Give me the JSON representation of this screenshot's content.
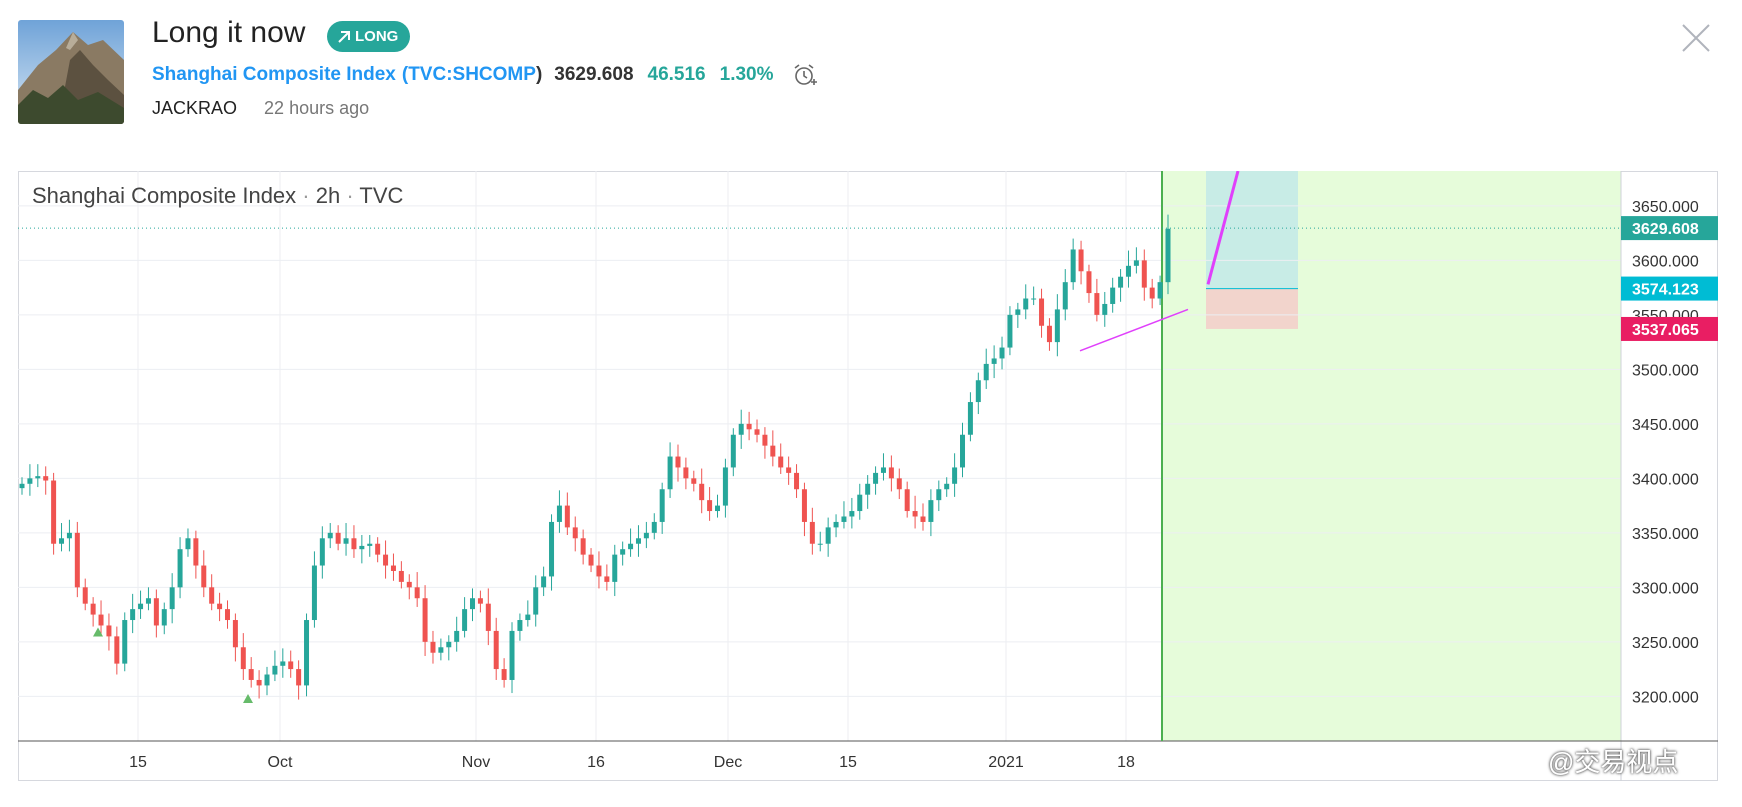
{
  "header": {
    "title": "Long it now",
    "badge_label": "LONG",
    "symbol_name": "Shanghai Composite Index",
    "symbol_open": "(",
    "symbol_code": "TVC:SHCOMP",
    "symbol_close": ")",
    "price": "3629.608",
    "change": "46.516",
    "change_pct": "1.30%",
    "author": "JACKRAO",
    "time_ago": "22 hours ago"
  },
  "colors": {
    "up": "#26a69a",
    "down": "#ef5350",
    "accent": "#2196f3",
    "target_zone": "#c8ece6",
    "stop_zone": "#f2d4cc",
    "future_zone": "#e6fcda",
    "trendline": "#e040fb",
    "entry_label": "#00bcd4",
    "stop_label": "#e91e63"
  },
  "icons": {
    "badge_icon": "arrow-up-right-icon",
    "alarm_icon": "alarm-clock-icon",
    "close_icon": "close-icon"
  },
  "chart_title": {
    "name": "Shanghai Composite Index",
    "sep1": "·",
    "interval": "2h",
    "sep2": "·",
    "source": "TVC"
  },
  "watermark": "@交易视点",
  "chart_data": {
    "type": "candlestick",
    "title": "Shanghai Composite Index · 2h · TVC",
    "y_ticks": [
      "3650.000",
      "3600.000",
      "3550.000",
      "3500.000",
      "3450.000",
      "3400.000",
      "3350.000",
      "3300.000",
      "3250.000",
      "3200.000"
    ],
    "x_ticks": [
      "15",
      "Oct",
      "Nov",
      "16",
      "Dec",
      "15",
      "2021",
      "18"
    ],
    "ylim": [
      3159,
      3682
    ],
    "grid": true,
    "price_labels": [
      {
        "value": "3629.608",
        "kind": "last"
      },
      {
        "value": "3574.123",
        "kind": "entry"
      },
      {
        "value": "3537.065",
        "kind": "stop"
      }
    ],
    "position": {
      "side": "long",
      "entry": 3574.123,
      "stop": 3537.065,
      "target": 3682
    },
    "trendline": {
      "from": [
        3517,
        "2021-01-11"
      ],
      "to": [
        3555,
        "2021-01-20"
      ]
    },
    "projection_line": {
      "from": 3578,
      "to": 3682
    },
    "closes": [
      3395,
      3400,
      3402,
      3398,
      3340,
      3345,
      3350,
      3300,
      3285,
      3275,
      3265,
      3255,
      3230,
      3270,
      3280,
      3285,
      3290,
      3265,
      3280,
      3300,
      3335,
      3345,
      3320,
      3300,
      3285,
      3280,
      3270,
      3245,
      3225,
      3215,
      3210,
      3220,
      3228,
      3232,
      3225,
      3210,
      3270,
      3320,
      3345,
      3350,
      3340,
      3345,
      3335,
      3338,
      3340,
      3330,
      3320,
      3315,
      3305,
      3300,
      3290,
      3250,
      3240,
      3245,
      3250,
      3260,
      3280,
      3290,
      3285,
      3260,
      3225,
      3215,
      3260,
      3270,
      3275,
      3300,
      3310,
      3360,
      3375,
      3355,
      3345,
      3330,
      3320,
      3310,
      3305,
      3330,
      3335,
      3340,
      3345,
      3350,
      3360,
      3390,
      3420,
      3410,
      3400,
      3395,
      3380,
      3370,
      3375,
      3410,
      3440,
      3450,
      3445,
      3440,
      3430,
      3420,
      3410,
      3405,
      3390,
      3360,
      3340,
      3340,
      3355,
      3360,
      3365,
      3370,
      3385,
      3395,
      3405,
      3410,
      3400,
      3390,
      3370,
      3365,
      3360,
      3380,
      3390,
      3395,
      3410,
      3440,
      3470,
      3490,
      3505,
      3510,
      3520,
      3550,
      3555,
      3565,
      3565,
      3540,
      3525,
      3555,
      3580,
      3610,
      3590,
      3570,
      3550,
      3560,
      3575,
      3585,
      3595,
      3600,
      3575,
      3565,
      3580,
      3629
    ]
  }
}
